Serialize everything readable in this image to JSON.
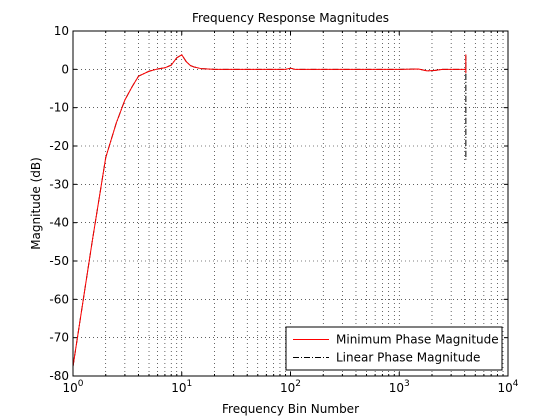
{
  "chart_data": {
    "type": "line",
    "title": "Frequency Response Magnitudes",
    "xlabel": "Frequency Bin Number",
    "ylabel": "Magnitude (dB)",
    "xscale": "log",
    "xlim": [
      1,
      10000
    ],
    "ylim": [
      -80,
      10
    ],
    "grid": true,
    "legend_position": "bottom-right",
    "x_ticks": [
      {
        "value": 1,
        "base": "10",
        "exp": "0"
      },
      {
        "value": 10,
        "base": "10",
        "exp": "1"
      },
      {
        "value": 100,
        "base": "10",
        "exp": "2"
      },
      {
        "value": 1000,
        "base": "10",
        "exp": "3"
      },
      {
        "value": 10000,
        "base": "10",
        "exp": "4"
      }
    ],
    "y_ticks": [
      {
        "value": 10,
        "label": "10"
      },
      {
        "value": 0,
        "label": "0"
      },
      {
        "value": -10,
        "label": "-10"
      },
      {
        "value": -20,
        "label": "-20"
      },
      {
        "value": -30,
        "label": "-30"
      },
      {
        "value": -40,
        "label": "-40"
      },
      {
        "value": -50,
        "label": "-50"
      },
      {
        "value": -60,
        "label": "-60"
      },
      {
        "value": -70,
        "label": "-70"
      },
      {
        "value": -80,
        "label": "-80"
      }
    ],
    "series": [
      {
        "name": "Minimum Phase Magnitude",
        "color": "#ff0000",
        "style": "solid",
        "points": [
          [
            1,
            -77.5
          ],
          [
            1.5,
            -45
          ],
          [
            2,
            -23
          ],
          [
            2.5,
            -14
          ],
          [
            3,
            -8
          ],
          [
            3.5,
            -4.5
          ],
          [
            4,
            -1.8
          ],
          [
            5,
            -0.5
          ],
          [
            6,
            0.1
          ],
          [
            7,
            0.4
          ],
          [
            8,
            1.1
          ],
          [
            9,
            3.0
          ],
          [
            10,
            3.8
          ],
          [
            11,
            2.0
          ],
          [
            12,
            1.0
          ],
          [
            13,
            0.6
          ],
          [
            15,
            0.2
          ],
          [
            20,
            0.0
          ],
          [
            50,
            0.0
          ],
          [
            90,
            0.0
          ],
          [
            100,
            0.3
          ],
          [
            110,
            0.0
          ],
          [
            500,
            0.0
          ],
          [
            1000,
            0.0
          ],
          [
            1500,
            0.1
          ],
          [
            1800,
            -0.4
          ],
          [
            2100,
            -0.3
          ],
          [
            2500,
            0.0
          ],
          [
            3500,
            0.0
          ],
          [
            4000,
            0.0
          ],
          [
            4096,
            0.0
          ],
          [
            4096,
            3.8
          ],
          [
            4097,
            -1.0
          ]
        ]
      },
      {
        "name": "Linear Phase Magnitude",
        "color": "#000000",
        "style": "dashdot",
        "points": [
          [
            1,
            -77.5
          ],
          [
            1.5,
            -45
          ],
          [
            2,
            -23
          ],
          [
            2.5,
            -14
          ],
          [
            3,
            -8
          ],
          [
            3.5,
            -4.5
          ],
          [
            4,
            -1.8
          ],
          [
            5,
            -0.5
          ],
          [
            6,
            0.1
          ],
          [
            7,
            0.4
          ],
          [
            8,
            1.1
          ],
          [
            9,
            3.0
          ],
          [
            10,
            3.8
          ],
          [
            11,
            2.0
          ],
          [
            12,
            1.0
          ],
          [
            13,
            0.6
          ],
          [
            15,
            0.2
          ],
          [
            20,
            0.0
          ],
          [
            50,
            0.0
          ],
          [
            90,
            0.0
          ],
          [
            100,
            0.3
          ],
          [
            110,
            0.0
          ],
          [
            500,
            0.0
          ],
          [
            1000,
            0.0
          ],
          [
            1500,
            0.1
          ],
          [
            1800,
            -0.4
          ],
          [
            2100,
            -0.3
          ],
          [
            2500,
            0.0
          ],
          [
            3500,
            0.0
          ],
          [
            4000,
            0.0
          ],
          [
            4096,
            0.0
          ],
          [
            4096,
            3.5
          ],
          [
            4097,
            -23.5
          ],
          [
            4097,
            0.0
          ]
        ]
      }
    ]
  }
}
